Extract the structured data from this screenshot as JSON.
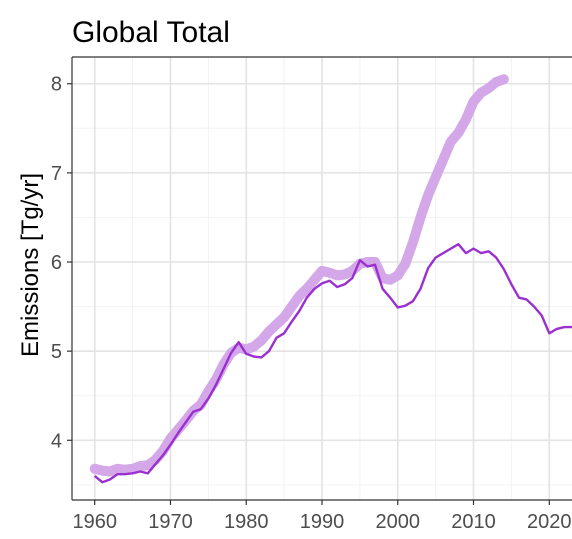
{
  "chart_data": {
    "type": "line",
    "title": "Global Total",
    "xlabel": "",
    "ylabel": "Emissions [Tg/yr]",
    "xlim": [
      1957,
      2023
    ],
    "ylim": [
      3.33,
      8.3
    ],
    "x_ticks": [
      1960,
      1970,
      1980,
      1990,
      2000,
      2010,
      2020
    ],
    "x_tick_labels": [
      "1960",
      "1970",
      "1980",
      "1990",
      "2000",
      "2010",
      "2020"
    ],
    "y_ticks": [
      4,
      5,
      6,
      7,
      8
    ],
    "y_tick_labels": [
      "4",
      "5",
      "6",
      "7",
      "8"
    ],
    "grid": true,
    "legend": "none",
    "series": [
      {
        "style": "thick-translucent",
        "color": "#d4a8e8",
        "x": [
          1960,
          1961,
          1962,
          1963,
          1964,
          1965,
          1966,
          1967,
          1968,
          1969,
          1970,
          1971,
          1972,
          1973,
          1974,
          1975,
          1976,
          1977,
          1978,
          1979,
          1980,
          1981,
          1982,
          1983,
          1984,
          1985,
          1986,
          1987,
          1988,
          1989,
          1990,
          1991,
          1992,
          1993,
          1994,
          1995,
          1996,
          1997,
          1998,
          1999,
          2000,
          2001,
          2002,
          2003,
          2004,
          2005,
          2006,
          2007,
          2008,
          2009,
          2010,
          2011,
          2012,
          2013,
          2014
        ],
        "values": [
          3.68,
          3.66,
          3.65,
          3.68,
          3.67,
          3.68,
          3.71,
          3.72,
          3.78,
          3.88,
          4.02,
          4.12,
          4.22,
          4.33,
          4.4,
          4.55,
          4.68,
          4.85,
          4.98,
          5.04,
          5.02,
          5.05,
          5.12,
          5.22,
          5.3,
          5.38,
          5.5,
          5.62,
          5.7,
          5.8,
          5.9,
          5.88,
          5.85,
          5.86,
          5.9,
          5.98,
          6.0,
          6.0,
          5.82,
          5.8,
          5.85,
          5.98,
          6.22,
          6.5,
          6.75,
          6.95,
          7.15,
          7.35,
          7.45,
          7.6,
          7.8,
          7.9,
          7.95,
          8.02,
          8.05
        ]
      },
      {
        "style": "thin",
        "color": "#9b30d0",
        "x": [
          1960,
          1961,
          1962,
          1963,
          1964,
          1965,
          1966,
          1967,
          1968,
          1969,
          1970,
          1971,
          1972,
          1973,
          1974,
          1975,
          1976,
          1977,
          1978,
          1979,
          1980,
          1981,
          1982,
          1983,
          1984,
          1985,
          1986,
          1987,
          1988,
          1989,
          1990,
          1991,
          1992,
          1993,
          1994,
          1995,
          1996,
          1997,
          1998,
          1999,
          2000,
          2001,
          2002,
          2003,
          2004,
          2005,
          2006,
          2007,
          2008,
          2009,
          2010,
          2011,
          2012,
          2013,
          2014,
          2015,
          2016,
          2017,
          2018,
          2019,
          2020,
          2021,
          2022,
          2023
        ],
        "values": [
          3.6,
          3.53,
          3.56,
          3.62,
          3.62,
          3.63,
          3.65,
          3.63,
          3.73,
          3.83,
          3.95,
          4.08,
          4.2,
          4.32,
          4.35,
          4.47,
          4.62,
          4.8,
          4.98,
          5.1,
          4.97,
          4.94,
          4.93,
          5.0,
          5.15,
          5.2,
          5.33,
          5.45,
          5.6,
          5.7,
          5.76,
          5.79,
          5.72,
          5.75,
          5.82,
          6.02,
          5.95,
          5.97,
          5.7,
          5.6,
          5.49,
          5.51,
          5.56,
          5.7,
          5.93,
          6.05,
          6.1,
          6.15,
          6.2,
          6.1,
          6.15,
          6.1,
          6.12,
          6.05,
          5.92,
          5.75,
          5.6,
          5.58,
          5.5,
          5.4,
          5.2,
          5.25,
          5.27,
          5.27
        ]
      }
    ]
  }
}
